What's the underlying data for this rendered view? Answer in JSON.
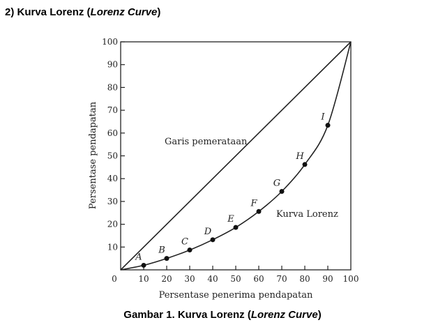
{
  "heading": {
    "prefix": "2) Kurva Lorenz (",
    "italic": "Lorenz Curve",
    "suffix": ")"
  },
  "caption": {
    "prefix": "Gambar 1. Kurva Lorenz (",
    "italic": "Lorenz Curve",
    "suffix": ")"
  },
  "chart_data": {
    "type": "line",
    "title": "",
    "xlabel": "Persentase penerima pendapatan",
    "ylabel": "Persentase pendapatan",
    "xlim": [
      0,
      100
    ],
    "ylim": [
      0,
      100
    ],
    "x_ticks": [
      0,
      10,
      20,
      30,
      40,
      50,
      60,
      70,
      80,
      90,
      100
    ],
    "y_ticks": [
      10,
      20,
      30,
      40,
      50,
      60,
      70,
      80,
      90,
      100
    ],
    "grid": false,
    "legend": "none",
    "series": [
      {
        "kind": "equality-line",
        "points": [
          [
            0,
            0
          ],
          [
            100,
            100
          ]
        ]
      },
      {
        "kind": "lorenz-curve",
        "points": [
          [
            0,
            0
          ],
          [
            10,
            2
          ],
          [
            20,
            5
          ],
          [
            30,
            8.7
          ],
          [
            40,
            13.2
          ],
          [
            50,
            18.6
          ],
          [
            60,
            25.6
          ],
          [
            70,
            34.4
          ],
          [
            80,
            46.2
          ],
          [
            90,
            63.4
          ],
          [
            100,
            100
          ]
        ]
      }
    ],
    "markers": [
      {
        "label": "A",
        "x": 10,
        "y": 2
      },
      {
        "label": "B",
        "x": 20,
        "y": 5
      },
      {
        "label": "C",
        "x": 30,
        "y": 8.7
      },
      {
        "label": "D",
        "x": 40,
        "y": 13.2
      },
      {
        "label": "E",
        "x": 50,
        "y": 18.6
      },
      {
        "label": "F",
        "x": 60,
        "y": 25.6
      },
      {
        "label": "G",
        "x": 70,
        "y": 34.4
      },
      {
        "label": "H",
        "x": 80,
        "y": 46.2
      },
      {
        "label": "I",
        "x": 90,
        "y": 63.4
      }
    ],
    "annotations": {
      "equality": "Garis pemerataan",
      "curve": "Kurva Lorenz"
    }
  }
}
